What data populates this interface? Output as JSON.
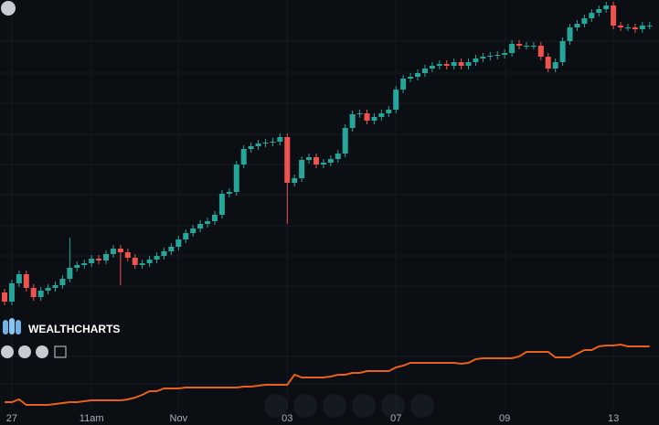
{
  "chart_data": {
    "type": "candlestick",
    "brand": "WEALTHCHARTS",
    "categories": [
      null,
      "27",
      null,
      null,
      null,
      null,
      null,
      null,
      null,
      null,
      null,
      null,
      "11am",
      null,
      null,
      null,
      null,
      null,
      null,
      null,
      null,
      null,
      null,
      null,
      "Nov",
      null,
      null,
      null,
      null,
      null,
      null,
      null,
      null,
      null,
      null,
      null,
      null,
      null,
      null,
      "03",
      null,
      null,
      null,
      null,
      null,
      null,
      null,
      null,
      null,
      null,
      null,
      null,
      null,
      null,
      "07",
      null,
      null,
      null,
      null,
      null,
      null,
      null,
      null,
      null,
      null,
      null,
      null,
      null,
      null,
      "09",
      null,
      null,
      null,
      null,
      null,
      null,
      null,
      null,
      null,
      null,
      null,
      null,
      null,
      null,
      "13",
      null,
      null,
      null,
      null,
      null
    ],
    "open": [
      145,
      135,
      155,
      165,
      150,
      140,
      147,
      150,
      153,
      160,
      172,
      175,
      177,
      182,
      180,
      187,
      193,
      189,
      183,
      175,
      177,
      181,
      185,
      190,
      195,
      203,
      210,
      215,
      220,
      223,
      230,
      253,
      255,
      285,
      302,
      305,
      308,
      309,
      310,
      315,
      265,
      270,
      290,
      293,
      285,
      287,
      291,
      297,
      325,
      340,
      341,
      333,
      337,
      341,
      345,
      367,
      379,
      381,
      385,
      390,
      393,
      395,
      393,
      397,
      393,
      397,
      401,
      403,
      404,
      405,
      407,
      417,
      415,
      415,
      415,
      403,
      390,
      397,
      420,
      435,
      439,
      445,
      451,
      455,
      459,
      437,
      435,
      435,
      433,
      437
    ],
    "high": [
      149,
      159,
      169,
      169,
      154,
      151,
      154,
      157,
      164,
      205,
      179,
      181,
      186,
      186,
      191,
      197,
      197,
      193,
      187,
      181,
      185,
      189,
      194,
      199,
      207,
      214,
      219,
      224,
      227,
      234,
      257,
      259,
      289,
      306,
      309,
      312,
      313,
      314,
      319,
      319,
      274,
      294,
      297,
      297,
      291,
      295,
      301,
      329,
      344,
      345,
      345,
      341,
      345,
      349,
      371,
      383,
      385,
      389,
      394,
      397,
      399,
      399,
      401,
      401,
      401,
      405,
      407,
      408,
      409,
      411,
      421,
      421,
      419,
      419,
      419,
      407,
      401,
      424,
      439,
      443,
      449,
      455,
      459,
      463,
      463,
      441,
      439,
      439,
      441,
      441
    ],
    "low": [
      131,
      131,
      151,
      146,
      136,
      136,
      143,
      146,
      149,
      156,
      168,
      171,
      173,
      176,
      176,
      183,
      153,
      179,
      171,
      171,
      173,
      177,
      181,
      186,
      191,
      199,
      206,
      211,
      216,
      219,
      226,
      249,
      251,
      281,
      298,
      301,
      304,
      305,
      306,
      220,
      261,
      266,
      286,
      281,
      281,
      283,
      287,
      293,
      321,
      336,
      329,
      329,
      333,
      337,
      341,
      363,
      375,
      377,
      381,
      386,
      389,
      389,
      389,
      389,
      389,
      393,
      397,
      399,
      400,
      401,
      403,
      411,
      411,
      411,
      399,
      386,
      386,
      393,
      416,
      431,
      435,
      441,
      447,
      451,
      433,
      431,
      431,
      429,
      429,
      433
    ],
    "close": [
      135,
      155,
      165,
      150,
      140,
      147,
      150,
      153,
      160,
      172,
      175,
      177,
      182,
      180,
      187,
      193,
      189,
      183,
      175,
      177,
      181,
      185,
      190,
      195,
      203,
      210,
      215,
      220,
      223,
      230,
      253,
      255,
      285,
      302,
      305,
      308,
      309,
      310,
      315,
      265,
      270,
      290,
      293,
      285,
      287,
      291,
      297,
      325,
      340,
      341,
      333,
      337,
      341,
      345,
      367,
      379,
      381,
      385,
      390,
      393,
      395,
      393,
      397,
      393,
      397,
      401,
      403,
      404,
      405,
      407,
      417,
      415,
      415,
      415,
      403,
      390,
      397,
      420,
      435,
      439,
      445,
      451,
      455,
      459,
      437,
      435,
      435,
      433,
      437,
      437
    ],
    "up_color": "#26a69a",
    "down_color": "#ef5350",
    "ylim": [
      0,
      465
    ],
    "indicator": {
      "color": "#e8601c",
      "values": [
        25,
        25,
        28,
        22,
        22,
        22,
        22,
        23,
        24,
        25,
        25,
        26,
        27,
        27,
        27,
        27,
        27,
        28,
        30,
        33,
        37,
        37,
        40,
        40,
        40,
        41,
        41,
        41,
        41,
        41,
        41,
        41,
        41,
        42,
        42,
        43,
        44,
        44,
        44,
        44,
        55,
        52,
        52,
        52,
        52,
        53,
        55,
        55,
        57,
        57,
        59,
        59,
        59,
        59,
        63,
        65,
        68,
        68,
        68,
        68,
        68,
        68,
        68,
        67,
        68,
        72,
        73,
        73,
        73,
        73,
        73,
        75,
        80,
        80,
        80,
        80,
        74,
        74,
        74,
        78,
        82,
        82,
        86,
        87,
        87,
        88,
        86,
        86,
        86,
        86
      ]
    }
  }
}
